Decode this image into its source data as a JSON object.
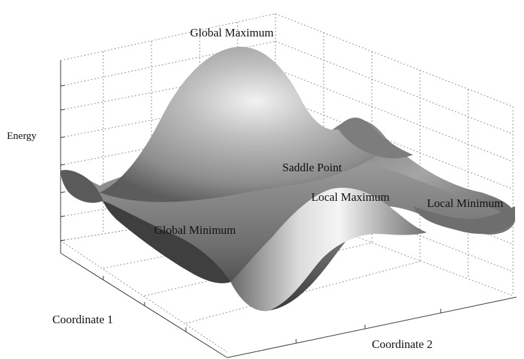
{
  "labels": {
    "energy_axis": "Energy",
    "coordinate1_axis": "Coordinate 1",
    "coordinate2_axis": "Coordinate 2",
    "global_maximum": "Global Maximum",
    "saddle_point": "Saddle Point",
    "local_maximum": "Local Maximum",
    "local_minimum": "Local Minimum",
    "global_minimum": "Global Minimum"
  },
  "colors": {
    "surface_dark": "#4a4a4a",
    "surface_mid": "#8c8c8c",
    "surface_light": "#e9e9e9",
    "gridlines": "#8a8a8a"
  }
}
